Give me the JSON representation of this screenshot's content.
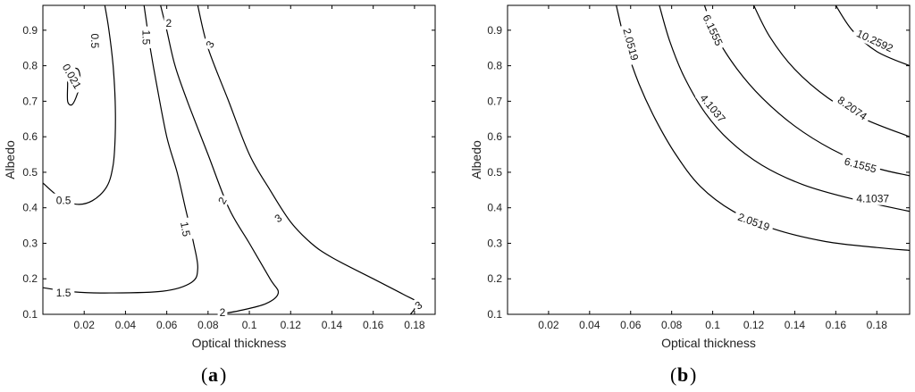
{
  "chart_data": [
    {
      "panel": "a",
      "type": "contour",
      "xlabel": "Optical thickness",
      "ylabel": "Albedo",
      "xlim": [
        0.0,
        0.19
      ],
      "ylim": [
        0.1,
        0.97
      ],
      "xticks": [
        0.02,
        0.04,
        0.06,
        0.08,
        0.1,
        0.12,
        0.14,
        0.16,
        0.18
      ],
      "xtick_labels": [
        "0.02",
        "0.04",
        "0.06",
        "0.08",
        "0.1",
        "0.12",
        "0.14",
        "0.16",
        "0.18"
      ],
      "yticks": [
        0.1,
        0.2,
        0.3,
        0.4,
        0.5,
        0.6,
        0.7,
        0.8,
        0.9
      ],
      "ytick_labels": [
        "0.1",
        "0.2",
        "0.3",
        "0.4",
        "0.5",
        "0.6",
        "0.7",
        "0.8",
        "0.9"
      ],
      "contours": [
        {
          "level": "0.021",
          "points": [
            [
              0.012,
              0.79
            ],
            [
              0.017,
              0.79
            ],
            [
              0.018,
              0.75
            ],
            [
              0.016,
              0.71
            ],
            [
              0.014,
              0.69
            ],
            [
              0.012,
              0.7
            ],
            [
              0.012,
              0.75
            ],
            [
              0.012,
              0.79
            ]
          ],
          "labels": [
            {
              "text": "0.021",
              "x": 0.014,
              "y": 0.77,
              "angle": 60
            }
          ]
        },
        {
          "level": "0.5",
          "points": [
            [
              0.03,
              0.97
            ],
            [
              0.032,
              0.9
            ],
            [
              0.034,
              0.8
            ],
            [
              0.035,
              0.7
            ],
            [
              0.035,
              0.6
            ],
            [
              0.034,
              0.52
            ],
            [
              0.031,
              0.46
            ],
            [
              0.024,
              0.42
            ],
            [
              0.016,
              0.41
            ],
            [
              0.008,
              0.43
            ],
            [
              0.0,
              0.47
            ]
          ],
          "labels": [
            {
              "text": "0.5",
              "x": 0.025,
              "y": 0.87,
              "angle": 90
            },
            {
              "text": "0.5",
              "x": 0.01,
              "y": 0.42,
              "angle": 0
            }
          ]
        },
        {
          "level": "1.5",
          "points": [
            [
              0.049,
              0.97
            ],
            [
              0.052,
              0.85
            ],
            [
              0.055,
              0.75
            ],
            [
              0.06,
              0.6
            ],
            [
              0.065,
              0.5
            ],
            [
              0.069,
              0.4
            ],
            [
              0.073,
              0.3
            ],
            [
              0.075,
              0.23
            ],
            [
              0.072,
              0.19
            ],
            [
              0.058,
              0.165
            ],
            [
              0.03,
              0.16
            ],
            [
              0.015,
              0.163
            ],
            [
              0.0,
              0.175
            ]
          ],
          "labels": [
            {
              "text": "1.5",
              "x": 0.05,
              "y": 0.88,
              "angle": 90
            },
            {
              "text": "1.5",
              "x": 0.069,
              "y": 0.34,
              "angle": 80
            },
            {
              "text": "1.5",
              "x": 0.01,
              "y": 0.16,
              "angle": 0
            }
          ]
        },
        {
          "level": "2",
          "points": [
            [
              0.057,
              0.97
            ],
            [
              0.06,
              0.9
            ],
            [
              0.064,
              0.8
            ],
            [
              0.07,
              0.7
            ],
            [
              0.08,
              0.55
            ],
            [
              0.09,
              0.4
            ],
            [
              0.1,
              0.3
            ],
            [
              0.11,
              0.2
            ],
            [
              0.114,
              0.16
            ],
            [
              0.108,
              0.13
            ],
            [
              0.095,
              0.11
            ],
            [
              0.085,
              0.1
            ]
          ],
          "labels": [
            {
              "text": "2",
              "x": 0.061,
              "y": 0.92,
              "angle": 0
            },
            {
              "text": "2",
              "x": 0.087,
              "y": 0.42,
              "angle": -60
            },
            {
              "text": "2",
              "x": 0.087,
              "y": 0.105,
              "angle": 0
            }
          ]
        },
        {
          "level": "3",
          "points": [
            [
              0.075,
              0.97
            ],
            [
              0.08,
              0.85
            ],
            [
              0.09,
              0.7
            ],
            [
              0.1,
              0.55
            ],
            [
              0.11,
              0.45
            ],
            [
              0.12,
              0.36
            ],
            [
              0.13,
              0.3
            ],
            [
              0.14,
              0.26
            ],
            [
              0.16,
              0.2
            ],
            [
              0.175,
              0.155
            ],
            [
              0.181,
              0.135
            ],
            [
              0.18,
              0.115
            ],
            [
              0.178,
              0.1
            ]
          ],
          "labels": [
            {
              "text": "3",
              "x": 0.081,
              "y": 0.86,
              "angle": -60
            },
            {
              "text": "3",
              "x": 0.114,
              "y": 0.37,
              "angle": -35
            },
            {
              "text": "3",
              "x": 0.182,
              "y": 0.125,
              "angle": -35
            }
          ]
        }
      ]
    },
    {
      "panel": "b",
      "type": "contour",
      "xlabel": "Optical thickness",
      "ylabel": "Albedo",
      "xlim": [
        0.0,
        0.196
      ],
      "ylim": [
        0.1,
        0.97
      ],
      "xticks": [
        0.02,
        0.04,
        0.06,
        0.08,
        0.1,
        0.12,
        0.14,
        0.16,
        0.18
      ],
      "xtick_labels": [
        "0.02",
        "0.04",
        "0.06",
        "0.08",
        "0.1",
        "0.12",
        "0.14",
        "0.16",
        "0.18"
      ],
      "yticks": [
        0.1,
        0.2,
        0.3,
        0.4,
        0.5,
        0.6,
        0.7,
        0.8,
        0.9
      ],
      "ytick_labels": [
        "0.1",
        "0.2",
        "0.3",
        "0.4",
        "0.5",
        "0.6",
        "0.7",
        "0.8",
        "0.9"
      ],
      "contours": [
        {
          "level": "2.0519",
          "points": [
            [
              0.053,
              0.97
            ],
            [
              0.058,
              0.85
            ],
            [
              0.064,
              0.75
            ],
            [
              0.072,
              0.65
            ],
            [
              0.082,
              0.55
            ],
            [
              0.094,
              0.46
            ],
            [
              0.11,
              0.39
            ],
            [
              0.13,
              0.34
            ],
            [
              0.155,
              0.305
            ],
            [
              0.18,
              0.288
            ],
            [
              0.196,
              0.28
            ]
          ],
          "labels": [
            {
              "text": "2.0519",
              "x": 0.06,
              "y": 0.86,
              "angle": 75
            },
            {
              "text": "2.0519",
              "x": 0.12,
              "y": 0.36,
              "angle": 20
            }
          ]
        },
        {
          "level": "4.1037",
          "points": [
            [
              0.074,
              0.97
            ],
            [
              0.079,
              0.87
            ],
            [
              0.086,
              0.77
            ],
            [
              0.096,
              0.67
            ],
            [
              0.108,
              0.59
            ],
            [
              0.124,
              0.52
            ],
            [
              0.144,
              0.465
            ],
            [
              0.168,
              0.425
            ],
            [
              0.196,
              0.39
            ]
          ],
          "labels": [
            {
              "text": "4.1037",
              "x": 0.1,
              "y": 0.68,
              "angle": 50
            },
            {
              "text": "4.1037",
              "x": 0.178,
              "y": 0.425,
              "angle": 0
            }
          ]
        },
        {
          "level": "6.1555",
          "points": [
            [
              0.096,
              0.97
            ],
            [
              0.102,
              0.88
            ],
            [
              0.112,
              0.79
            ],
            [
              0.124,
              0.71
            ],
            [
              0.14,
              0.63
            ],
            [
              0.158,
              0.565
            ],
            [
              0.178,
              0.515
            ],
            [
              0.196,
              0.49
            ]
          ],
          "labels": [
            {
              "text": "6.1555",
              "x": 0.1,
              "y": 0.9,
              "angle": 65
            },
            {
              "text": "6.1555",
              "x": 0.172,
              "y": 0.52,
              "angle": 15
            }
          ]
        },
        {
          "level": "8.2074",
          "points": [
            [
              0.12,
              0.97
            ],
            [
              0.128,
              0.88
            ],
            [
              0.14,
              0.79
            ],
            [
              0.156,
              0.71
            ],
            [
              0.174,
              0.65
            ],
            [
              0.196,
              0.6
            ]
          ],
          "labels": [
            {
              "text": "8.2074",
              "x": 0.168,
              "y": 0.68,
              "angle": 35
            }
          ]
        },
        {
          "level": "10.2592",
          "points": [
            [
              0.16,
              0.97
            ],
            [
              0.168,
              0.9
            ],
            [
              0.18,
              0.84
            ],
            [
              0.196,
              0.8
            ]
          ],
          "labels": [
            {
              "text": "10.2592",
              "x": 0.179,
              "y": 0.87,
              "angle": 25
            }
          ]
        }
      ]
    }
  ],
  "panel_labels": {
    "a": "a",
    "b": "b"
  }
}
